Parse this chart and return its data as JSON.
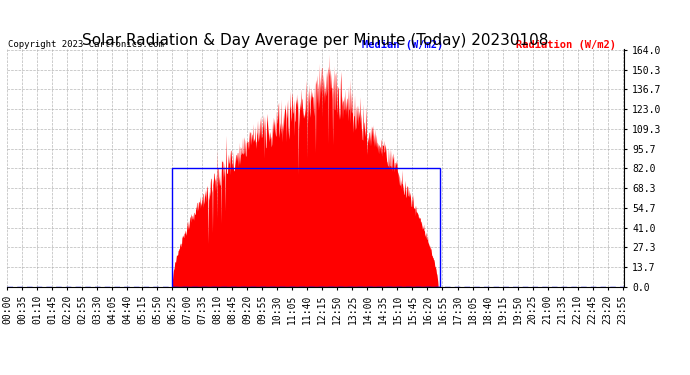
{
  "title": "Solar Radiation & Day Average per Minute (Today) 20230108",
  "copyright": "Copyright 2023 Cartronics.com",
  "legend_median": "Median (W/m2)",
  "legend_radiation": "Radiation (W/m2)",
  "yticks": [
    0.0,
    13.7,
    27.3,
    41.0,
    54.7,
    68.3,
    82.0,
    95.7,
    109.3,
    123.0,
    136.7,
    150.3,
    164.0
  ],
  "ymax": 164.0,
  "ymin": 0.0,
  "background_color": "#ffffff",
  "plot_bg_color": "#ffffff",
  "bar_color": "#ff0000",
  "median_box_color": "#0000ff",
  "median_line_color": "#0000ff",
  "grid_color": "#b0b0b0",
  "title_fontsize": 11,
  "tick_fontsize": 7,
  "n_minutes": 1440,
  "sunrise_minute": 385,
  "sunset_minute": 1005,
  "peak_minute": 755,
  "peak_value": 164.0,
  "median_start_minute": 385,
  "median_end_minute": 1010,
  "median_value": 82.0,
  "xtick_labels": [
    "00:00",
    "00:35",
    "01:10",
    "01:45",
    "02:20",
    "02:55",
    "03:30",
    "04:05",
    "04:40",
    "05:15",
    "05:50",
    "06:25",
    "07:00",
    "07:35",
    "08:10",
    "08:45",
    "09:20",
    "09:55",
    "10:30",
    "11:05",
    "11:40",
    "12:15",
    "12:50",
    "13:25",
    "14:00",
    "14:35",
    "15:10",
    "15:45",
    "16:20",
    "16:55",
    "17:30",
    "18:05",
    "18:40",
    "19:15",
    "19:50",
    "20:25",
    "21:00",
    "21:35",
    "22:10",
    "22:45",
    "23:20",
    "23:55"
  ],
  "xtick_minutes": [
    0,
    35,
    70,
    105,
    140,
    175,
    210,
    245,
    280,
    315,
    350,
    385,
    420,
    455,
    490,
    525,
    560,
    595,
    630,
    665,
    700,
    735,
    770,
    805,
    840,
    875,
    910,
    945,
    980,
    1015,
    1050,
    1085,
    1120,
    1155,
    1190,
    1225,
    1260,
    1295,
    1330,
    1365,
    1400,
    1435
  ]
}
